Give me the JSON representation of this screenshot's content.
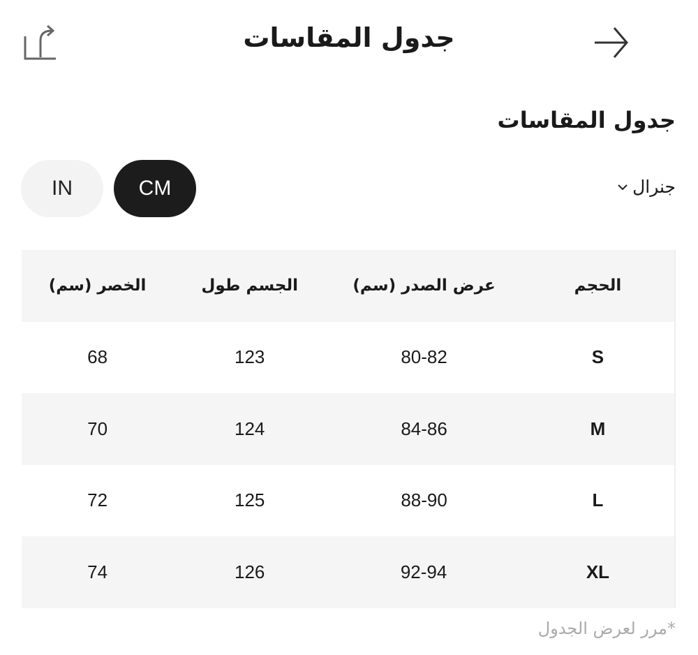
{
  "header": {
    "title": "جدول المقاسات",
    "back_icon": "arrow-right-icon",
    "share_icon": "share-icon"
  },
  "section": {
    "title": "جدول المقاسات"
  },
  "filter": {
    "selected": "جنرال"
  },
  "units": {
    "cm": "CM",
    "in": "IN",
    "active": "CM"
  },
  "table": {
    "headers": [
      "الحجم",
      "عرض الصدر (سم)",
      "الجسم طول",
      "الخصر (سم)"
    ],
    "rows": [
      [
        "S",
        "80-82",
        "123",
        "68"
      ],
      [
        "M",
        "84-86",
        "124",
        "70"
      ],
      [
        "L",
        "88-90",
        "125",
        "72"
      ],
      [
        "XL",
        "92-94",
        "126",
        "74"
      ]
    ]
  },
  "hint": "*مرر لعرض الجدول"
}
